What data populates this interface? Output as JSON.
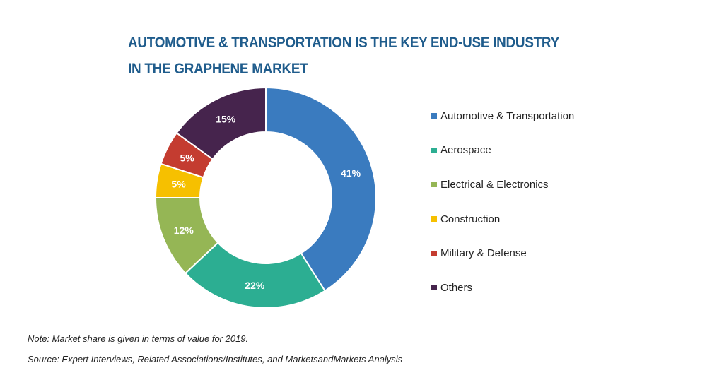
{
  "title": {
    "line1": "AUTOMOTIVE & TRANSPORTATION IS THE KEY END-USE INDUSTRY",
    "line2": "IN THE GRAPHENE MARKET"
  },
  "chart_data": {
    "type": "pie",
    "donut": true,
    "title": "AUTOMOTIVE & TRANSPORTATION IS THE KEY END-USE INDUSTRY IN THE GRAPHENE MARKET",
    "legend_position": "right",
    "slices": [
      {
        "name": "Automotive & Transportation",
        "value": 41,
        "label": "41%",
        "color": "#3a7bbf"
      },
      {
        "name": "Aerospace",
        "value": 22,
        "label": "22%",
        "color": "#2cae92"
      },
      {
        "name": "Electrical & Electronics",
        "value": 12,
        "label": "12%",
        "color": "#95b655"
      },
      {
        "name": "Construction",
        "value": 5,
        "label": "5%",
        "color": "#f6c000"
      },
      {
        "name": "Military & Defense",
        "value": 5,
        "label": "5%",
        "color": "#c43c30"
      },
      {
        "name": "Others",
        "value": 15,
        "label": "15%",
        "color": "#46244d"
      }
    ]
  },
  "footer": {
    "note": "Note: Market share is given in terms of value for 2019.",
    "source": "Source: Expert Interviews, Related Associations/Institutes, and MarketsandMarkets Analysis"
  }
}
